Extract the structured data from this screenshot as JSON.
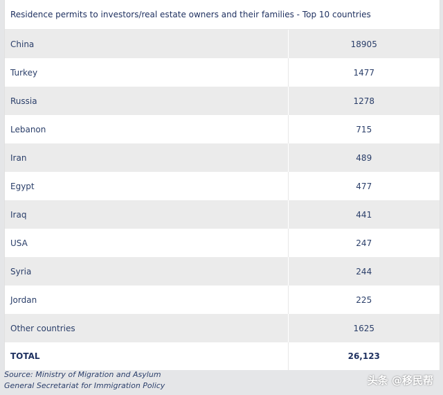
{
  "title": "Residence permits to investors/real estate owners and their families - Top 10 countries",
  "rows": [
    {
      "country": "China",
      "value": "18905"
    },
    {
      "country": "Turkey",
      "value": "1477"
    },
    {
      "country": "Russia",
      "value": "1278"
    },
    {
      "country": "Lebanon",
      "value": "715"
    },
    {
      "country": "Iran",
      "value": "489"
    },
    {
      "country": "Egypt",
      "value": "477"
    },
    {
      "country": "Iraq",
      "value": "441"
    },
    {
      "country": "USA",
      "value": "247"
    },
    {
      "country": "Syria",
      "value": "244"
    },
    {
      "country": "Jordan",
      "value": "225"
    },
    {
      "country": "Other countries",
      "value": "1625"
    }
  ],
  "total": {
    "label": "TOTAL",
    "value": "26,123"
  },
  "source": {
    "line1": "Source: Ministry of Migration and Asylum",
    "line2": "General Secretariat for Immigration Policy"
  },
  "watermark": "头条 @移民帮"
}
